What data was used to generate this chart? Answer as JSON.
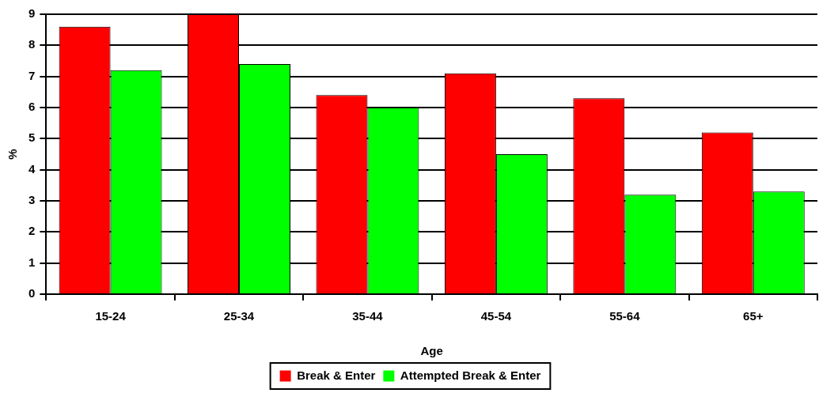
{
  "chart_data": {
    "type": "bar",
    "xlabel": "Age",
    "ylabel": "%",
    "categories": [
      "15-24",
      "25-34",
      "35-44",
      "45-54",
      "55-64",
      "65+"
    ],
    "series": [
      {
        "name": "Break & Enter",
        "color": "#ff0000",
        "values": [
          8.6,
          9.0,
          6.4,
          7.1,
          6.3,
          5.2
        ]
      },
      {
        "name": "Attempted Break & Enter",
        "color": "#00ff00",
        "values": [
          7.2,
          7.4,
          6.0,
          4.5,
          3.2,
          3.3
        ]
      }
    ],
    "ylim": [
      0,
      9
    ],
    "yticks": [
      0,
      1,
      2,
      3,
      4,
      5,
      6,
      7,
      8,
      9
    ],
    "grid": "y",
    "legend": "bottom"
  }
}
